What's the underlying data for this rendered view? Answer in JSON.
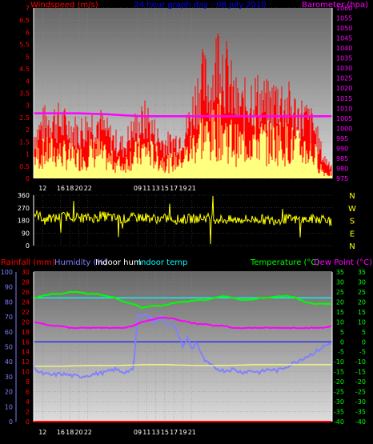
{
  "colors": {
    "background": "#000000",
    "panel_top": "#6e6e6e",
    "panel_bottom": "#d8d8d8",
    "wind_gust": "#ff0000",
    "wind_avg": "#ffff80",
    "barometer": "#ff00ff",
    "direction": "#ffff00",
    "rain": "#ff0000",
    "humidity": "#8080ff",
    "indoor_hum": "#ffff80",
    "indoor_temp": "#00ffff",
    "temperature": "#00ff00",
    "dewpoint": "#ff00ff",
    "zero_line": "#0000ff"
  },
  "chart_data": [
    {
      "type": "area",
      "title": "24 hour graph day - 08 July 2010",
      "ylabel": "Windspeed (m/s)",
      "y2label": "Barometer (hpa)",
      "ylim": [
        0,
        7
      ],
      "y_ticks": [
        "0",
        "0.5",
        "1",
        "1.5",
        "2",
        "2.5",
        "3",
        "3.5",
        "4",
        "4.5",
        "5",
        "5.5",
        "6",
        "6.5",
        "7"
      ],
      "y2lim": [
        975,
        1060
      ],
      "y2_ticks": [
        "975",
        "980",
        "985",
        "990",
        "995",
        "1000",
        "1005",
        "1010",
        "1015",
        "1020",
        "1025",
        "1030",
        "1035",
        "1040",
        "1045",
        "1050",
        "1055",
        "1060"
      ],
      "x_ticks": [
        "12",
        "16",
        "18",
        "20",
        "22",
        "09",
        "11",
        "13",
        "15",
        "17",
        "19",
        "21"
      ],
      "grid": true,
      "series": [
        {
          "name": "Gust",
          "hours": [
            10,
            12,
            14,
            16,
            18,
            20,
            22,
            24,
            26,
            28,
            30,
            31,
            32,
            33,
            34,
            35,
            36,
            38,
            40,
            42,
            44,
            45,
            46,
            47,
            48,
            49,
            50,
            51,
            52,
            53,
            54,
            55,
            56,
            57,
            58,
            60,
            62,
            64,
            66,
            68,
            70,
            72,
            74,
            75,
            76
          ],
          "values": [
            1.8,
            2.3,
            2.6,
            2.4,
            2.2,
            2.0,
            2.3,
            2.5,
            2.0,
            1.6,
            1.4,
            1.8,
            2.1,
            2.3,
            2.4,
            2.6,
            2.2,
            1.6,
            1.5,
            1.7,
            2.2,
            2.8,
            3.6,
            4.2,
            4.1,
            3.8,
            4.4,
            5.8,
            4.8,
            4.3,
            3.6,
            3.2,
            3.0,
            3.3,
            3.6,
            3.4,
            3.1,
            3.5,
            3.2,
            2.8,
            2.6,
            2.2,
            0.9,
            0.7,
            0.6
          ]
        },
        {
          "name": "Average",
          "hours": [
            10,
            12,
            14,
            16,
            18,
            20,
            22,
            24,
            26,
            28,
            30,
            31,
            32,
            33,
            34,
            35,
            36,
            38,
            40,
            42,
            44,
            45,
            46,
            47,
            48,
            49,
            50,
            51,
            52,
            53,
            54,
            55,
            56,
            57,
            58,
            60,
            62,
            64,
            66,
            68,
            70,
            72,
            74,
            75,
            76
          ],
          "values": [
            0.9,
            1.1,
            1.2,
            1.1,
            1.0,
            0.9,
            1.1,
            1.2,
            0.9,
            0.7,
            0.6,
            0.9,
            1.0,
            1.1,
            1.2,
            1.3,
            1.1,
            0.8,
            0.7,
            0.8,
            1.1,
            1.4,
            1.7,
            2.0,
            1.9,
            1.8,
            2.0,
            2.4,
            2.1,
            1.9,
            1.7,
            1.5,
            1.5,
            1.6,
            1.8,
            1.7,
            1.6,
            1.7,
            1.6,
            1.4,
            1.3,
            1.1,
            0.3,
            0.2,
            0.2
          ]
        },
        {
          "name": "Barometer",
          "axis": "y2",
          "hours": [
            10,
            20,
            26,
            30,
            34,
            40,
            46,
            50,
            56,
            60,
            66,
            70,
            76
          ],
          "values": [
            1007.5,
            1007.5,
            1007,
            1006.5,
            1006,
            1006,
            1006,
            1006,
            1006,
            1006,
            1006,
            1006,
            1006
          ]
        }
      ]
    },
    {
      "type": "scatter",
      "ylabel": "Wind direction",
      "ylim": [
        0,
        360
      ],
      "y_ticks": [
        "0",
        "90",
        "180",
        "270",
        "360"
      ],
      "direction_labels": [
        "N",
        "W",
        "S",
        "E",
        "N"
      ],
      "series": [
        {
          "name": "Direction",
          "hours": [
            10,
            12,
            14,
            16,
            18,
            20,
            22,
            24,
            26,
            28,
            30,
            32,
            34,
            36,
            38,
            40,
            42,
            44,
            46,
            48,
            50,
            52,
            54,
            56,
            58,
            60,
            62,
            64,
            66,
            68,
            70,
            72,
            74,
            75,
            76
          ],
          "values": [
            230,
            200,
            190,
            205,
            215,
            200,
            195,
            200,
            210,
            195,
            190,
            200,
            205,
            195,
            190,
            195,
            185,
            190,
            195,
            200,
            190,
            185,
            180,
            190,
            185,
            190,
            180,
            185,
            190,
            185,
            185,
            190,
            195,
            195,
            140
          ]
        }
      ]
    },
    {
      "type": "line",
      "ylabels": [
        "Rainfall (mm)",
        "Humidity (%)",
        "Indoor hum",
        "Indoor temp"
      ],
      "y2labels": [
        "Temperature (°C)",
        "Dew Point (°C)"
      ],
      "humidity_lim": [
        0,
        100
      ],
      "humidity_ticks": [
        "0",
        "10",
        "20",
        "30",
        "40",
        "50",
        "60",
        "70",
        "80",
        "90",
        "100"
      ],
      "rain_lim": [
        0,
        30
      ],
      "rain_ticks": [
        "0",
        "2",
        "4",
        "6",
        "8",
        "10",
        "12",
        "14",
        "16",
        "18",
        "20",
        "22",
        "24",
        "26",
        "28",
        "30"
      ],
      "temp_lim": [
        -40,
        35
      ],
      "temp_ticks": [
        "-40",
        "-35",
        "-30",
        "-25",
        "-20",
        "-15",
        "-10",
        "-5",
        "0",
        "5",
        "10",
        "15",
        "20",
        "25",
        "30",
        "35"
      ],
      "x_ticks": [
        "12",
        "16",
        "18",
        "20",
        "22",
        "09",
        "11",
        "13",
        "15",
        "17",
        "19",
        "21"
      ],
      "series": [
        {
          "name": "Humidity",
          "axis": "humidity",
          "hours": [
            10,
            11,
            12,
            14,
            16,
            18,
            20,
            22,
            24,
            26,
            28,
            30,
            31,
            32,
            33,
            34,
            35,
            36,
            37,
            38,
            39,
            40,
            41,
            42,
            43,
            44,
            45,
            46,
            47,
            48,
            50,
            52,
            54,
            56,
            58,
            60,
            62,
            64,
            66,
            68,
            70,
            72,
            74,
            76
          ],
          "values": [
            38,
            33,
            32,
            31,
            32,
            31,
            30,
            31,
            32,
            33,
            35,
            33,
            34,
            34,
            70,
            72,
            71,
            69,
            66,
            70,
            67,
            65,
            64,
            58,
            50,
            56,
            48,
            54,
            45,
            40,
            36,
            34,
            35,
            33,
            34,
            33,
            35,
            34,
            37,
            40,
            43,
            46,
            50,
            53
          ]
        },
        {
          "name": "Indoor hum",
          "axis": "humidity",
          "hours": [
            10,
            16,
            22,
            28,
            34,
            40,
            46,
            52,
            58,
            64,
            70,
            76
          ],
          "values": [
            37,
            37,
            37.5,
            37.5,
            38,
            38,
            37.5,
            37.5,
            38,
            38,
            38,
            38
          ]
        },
        {
          "name": "Indoor temp",
          "axis": "temp",
          "hours": [
            10,
            34,
            40,
            46,
            52,
            58,
            64,
            70,
            76
          ],
          "values": [
            22,
            22,
            22,
            22,
            22,
            22,
            22,
            22,
            22
          ]
        },
        {
          "name": "Temperature",
          "axis": "temp",
          "hours": [
            10,
            12,
            14,
            16,
            18,
            20,
            22,
            24,
            26,
            28,
            30,
            32,
            34,
            36,
            38,
            40,
            42,
            44,
            46,
            48,
            50,
            52,
            54,
            56,
            58,
            60,
            62,
            64,
            66,
            68,
            70,
            72,
            74,
            76
          ],
          "values": [
            22,
            23,
            24,
            24,
            25,
            25,
            24,
            24,
            23,
            22,
            20,
            19,
            17,
            18,
            18,
            19,
            20,
            20,
            21,
            21,
            22,
            23,
            22,
            21,
            21,
            22,
            22,
            23,
            23,
            22,
            20,
            19,
            19,
            19
          ]
        },
        {
          "name": "Dew Point",
          "axis": "temp",
          "hours": [
            10,
            12,
            14,
            16,
            18,
            20,
            22,
            24,
            26,
            28,
            30,
            32,
            34,
            36,
            38,
            40,
            42,
            44,
            46,
            48,
            50,
            52,
            54,
            56,
            58,
            60,
            62,
            64,
            66,
            68,
            70,
            72,
            74,
            76
          ],
          "values": [
            10,
            9,
            8,
            8,
            7,
            7,
            7,
            7,
            7,
            7,
            7,
            8,
            10,
            11,
            12,
            12,
            11,
            10,
            9,
            9,
            8,
            8,
            7,
            7,
            7,
            7,
            7,
            7,
            7,
            7,
            7,
            7,
            7,
            8
          ]
        },
        {
          "name": "Rainfall",
          "axis": "rain",
          "hours": [
            10,
            76
          ],
          "values": [
            0,
            0
          ]
        }
      ]
    }
  ]
}
